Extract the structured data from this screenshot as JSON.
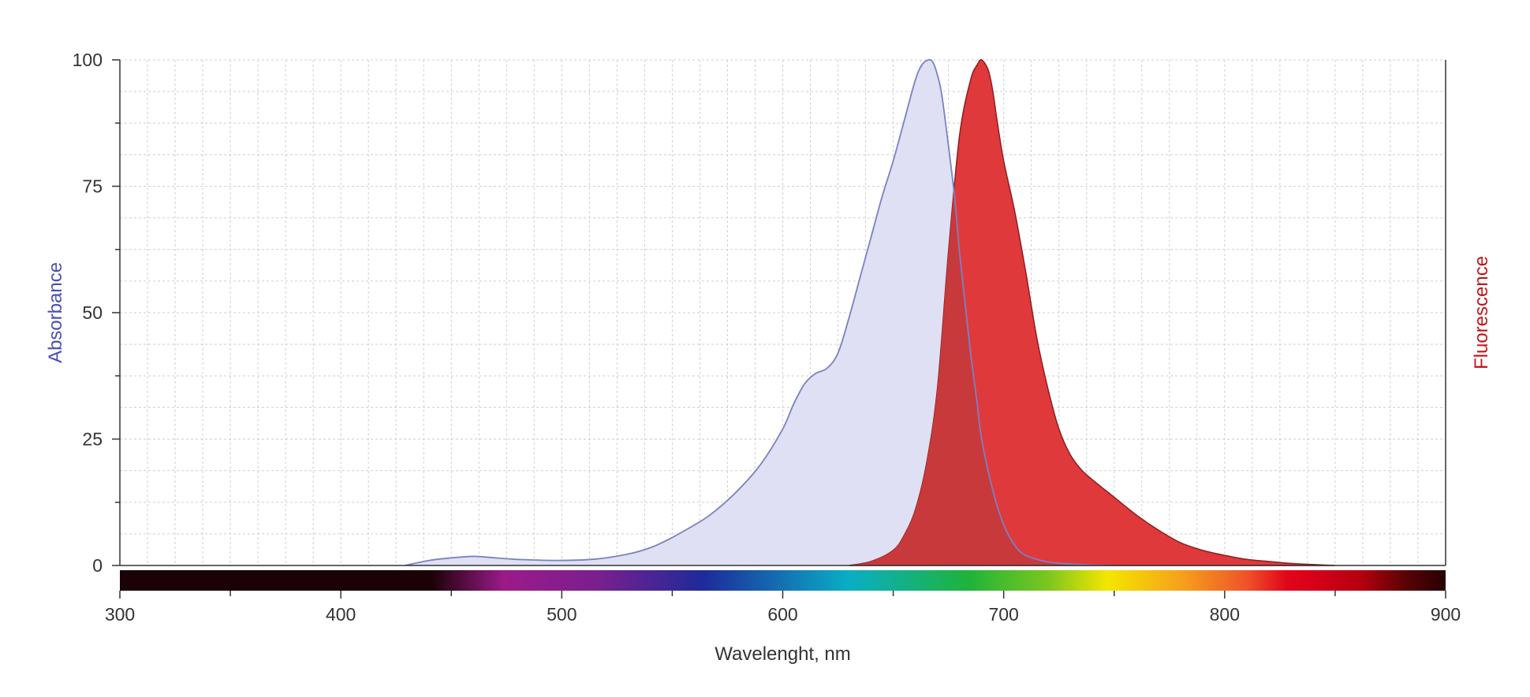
{
  "chart_data": {
    "type": "area",
    "title": "",
    "xlabel": "Wavelenght, nm",
    "ylabel": "Absorbance",
    "y2label": "Fluorescence",
    "xlim": [
      300,
      900
    ],
    "ylim": [
      0,
      100
    ],
    "x_ticks": [
      300,
      400,
      500,
      600,
      700,
      800,
      900
    ],
    "y_ticks": [
      0,
      25,
      50,
      75,
      100
    ],
    "grid": true,
    "colors": {
      "absorbance_fill": "#dfe0f3",
      "absorbance_line": "#7a81c2",
      "fluorescence_fill": "#e0393b",
      "fluorescence_line": "#8a1f22",
      "overlap_fill": "#c8393c",
      "ylabel_color": "#4a4fb0",
      "y2label_color": "#c0161b",
      "axis_color": "#333333",
      "grid_color": "#cfcfcf"
    },
    "series": [
      {
        "name": "Absorbance",
        "x": [
          429,
          440,
          450,
          460,
          470,
          480,
          500,
          520,
          540,
          560,
          570,
          580,
          590,
          600,
          605,
          610,
          615,
          620,
          625,
          630,
          635,
          640,
          645,
          650,
          655,
          660,
          663,
          666,
          668,
          670,
          672,
          675,
          678,
          680,
          683,
          685,
          688,
          690,
          695,
          700,
          705,
          710,
          720,
          730,
          740,
          750
        ],
        "values": [
          0,
          1,
          1.5,
          1.8,
          1.5,
          1.2,
          1,
          1.5,
          3.5,
          8,
          11,
          15,
          20,
          27,
          32,
          36,
          38,
          39,
          42,
          49,
          57,
          65,
          73,
          80,
          88,
          96,
          99,
          100,
          99.5,
          97,
          93,
          83,
          72,
          62,
          50,
          42,
          32,
          25,
          15,
          8,
          4,
          2,
          0.7,
          0.3,
          0.1,
          0
        ]
      },
      {
        "name": "Fluorescence",
        "x": [
          630,
          640,
          650,
          655,
          660,
          665,
          670,
          675,
          680,
          685,
          688,
          690,
          693,
          695,
          697,
          700,
          705,
          710,
          715,
          720,
          725,
          730,
          735,
          740,
          750,
          760,
          770,
          780,
          790,
          800,
          810,
          820,
          830,
          840,
          850
        ],
        "values": [
          0,
          0.8,
          3,
          6,
          11,
          20,
          35,
          62,
          85,
          96,
          99,
          100,
          98,
          94,
          88,
          80,
          70,
          58,
          45,
          35,
          27,
          22,
          19,
          17,
          13.5,
          10,
          7,
          4.5,
          3,
          2,
          1.2,
          0.8,
          0.4,
          0.2,
          0
        ]
      }
    ]
  }
}
